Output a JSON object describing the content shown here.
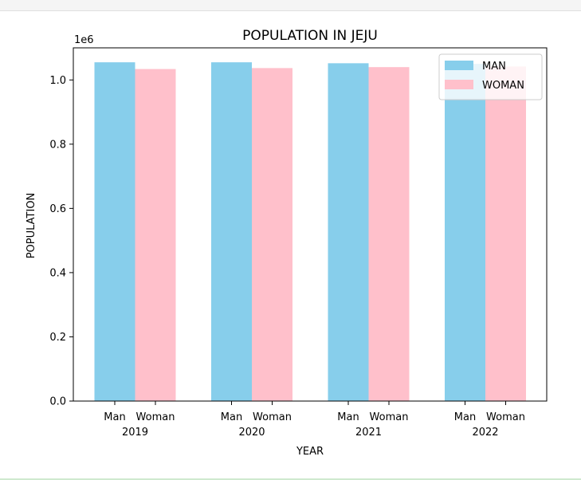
{
  "chart_data": {
    "type": "bar",
    "title": "POPULATION IN JEJU",
    "xlabel": "YEAR",
    "ylabel": "POPULATION",
    "offset_text": "1e6",
    "categories": [
      "2019",
      "2020",
      "2021",
      "2022"
    ],
    "bar_labels": [
      "Man",
      "Woman"
    ],
    "series": [
      {
        "name": "MAN",
        "color": "#87ceeb",
        "values": [
          1055000,
          1055000,
          1052000,
          1050000
        ]
      },
      {
        "name": "WOMAN",
        "color": "#ffc0cb",
        "values": [
          1034000,
          1037000,
          1040000,
          1042000
        ]
      }
    ],
    "ylim": [
      0,
      1100000
    ],
    "yticks": [
      0,
      200000,
      400000,
      600000,
      800000,
      1000000
    ],
    "ytick_labels": [
      "0.0",
      "0.2",
      "0.4",
      "0.6",
      "0.8",
      "1.0"
    ],
    "grid": false,
    "legend_position": "top-right"
  }
}
